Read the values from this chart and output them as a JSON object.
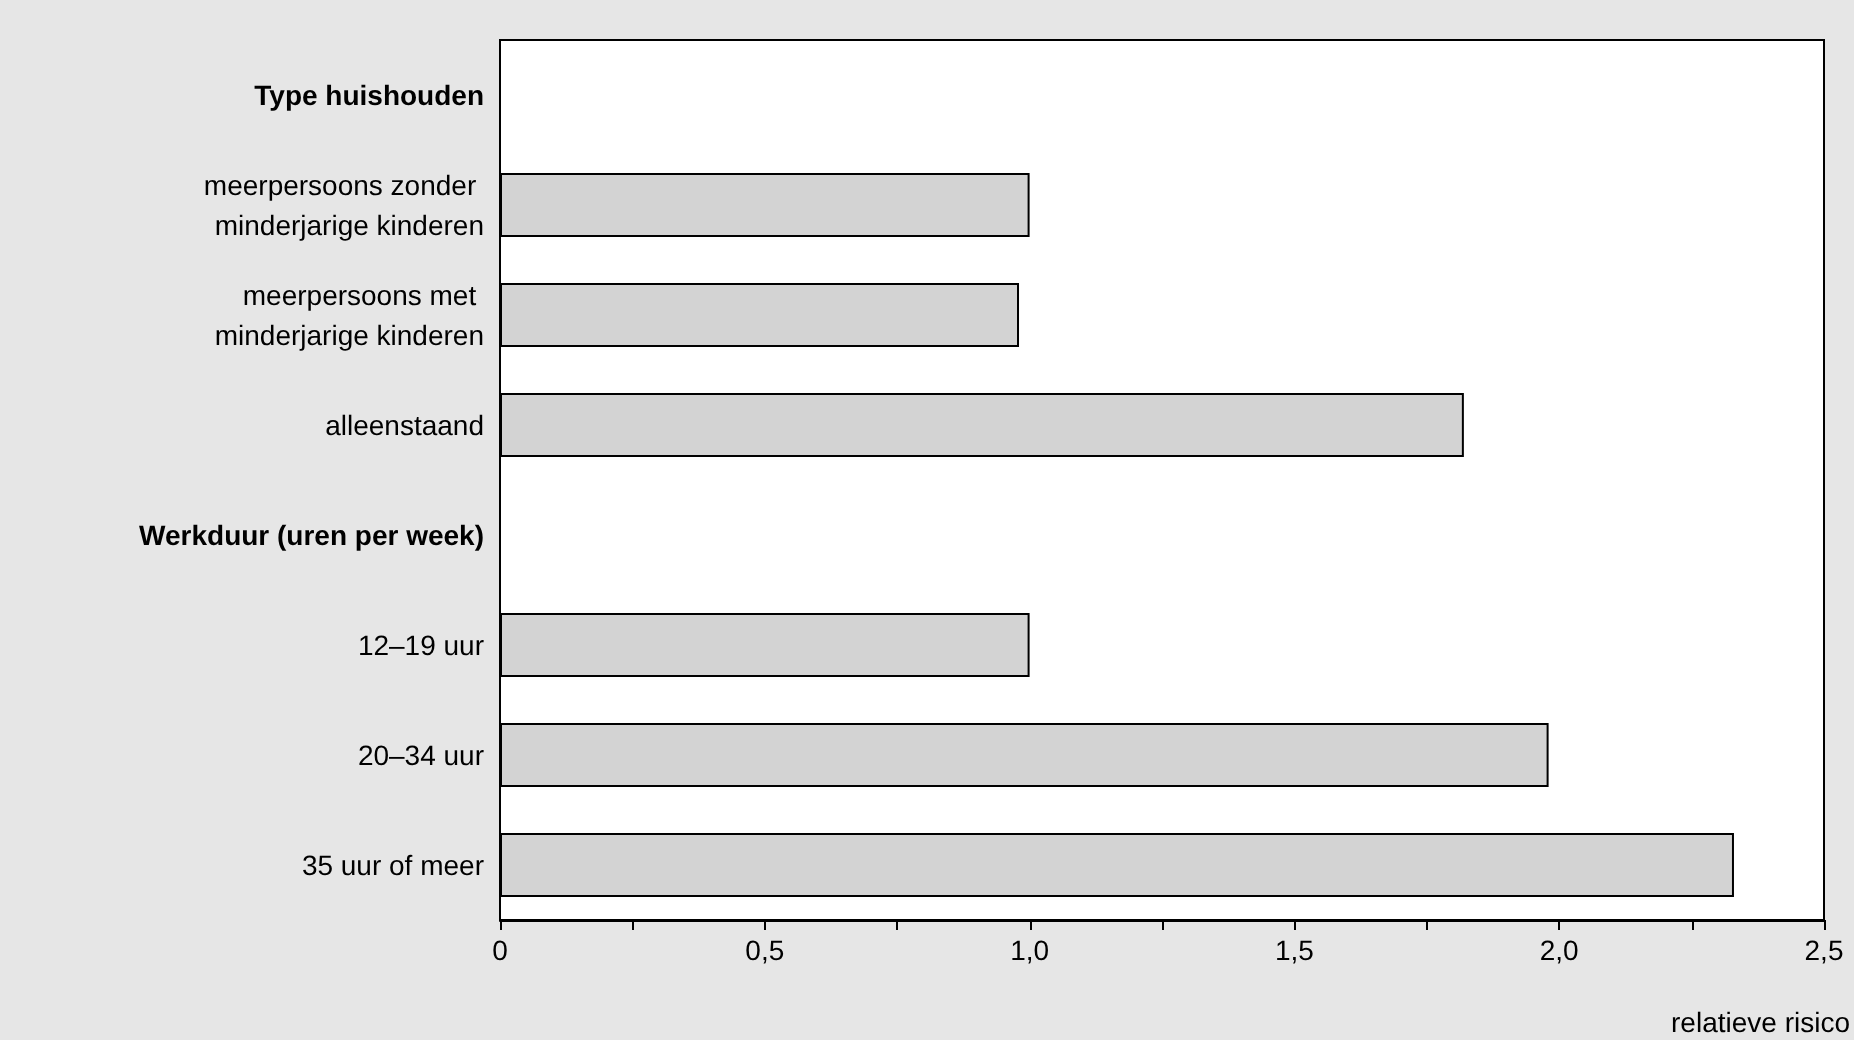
{
  "chart_data": {
    "type": "bar",
    "orientation": "horizontal",
    "xlabel": "relatieve risico",
    "categories": [
      "Type huishouden",
      "meerpersoons zonder minderjarige kinderen",
      "meerpersoons met minderjarige kinderen",
      "alleenstaand",
      "Werkduur (uren per week)",
      "12–19 uur",
      "20–34 uur",
      "35 uur of meer"
    ],
    "values": [
      null,
      1.0,
      0.98,
      1.82,
      null,
      1.0,
      1.98,
      2.33
    ],
    "color": "#d3d3d3",
    "xlim": [
      0,
      2.5
    ],
    "xticks": [
      0,
      {
        "value": 0.25,
        "label": null
      },
      {
        "value": 0.5,
        "label": "0,5"
      },
      {
        "value": 0.75,
        "label": null
      },
      {
        "value": 1,
        "label": "1,0"
      },
      {
        "value": 1.25,
        "label": null
      },
      {
        "value": 1.5,
        "label": "1,5"
      },
      {
        "value": 1.75,
        "label": null
      },
      {
        "value": 2,
        "label": "2,0"
      },
      {
        "value": 2.25,
        "label": null
      },
      {
        "value": 2.5,
        "label": "2,5"
      }
    ],
    "grid": false
  }
}
